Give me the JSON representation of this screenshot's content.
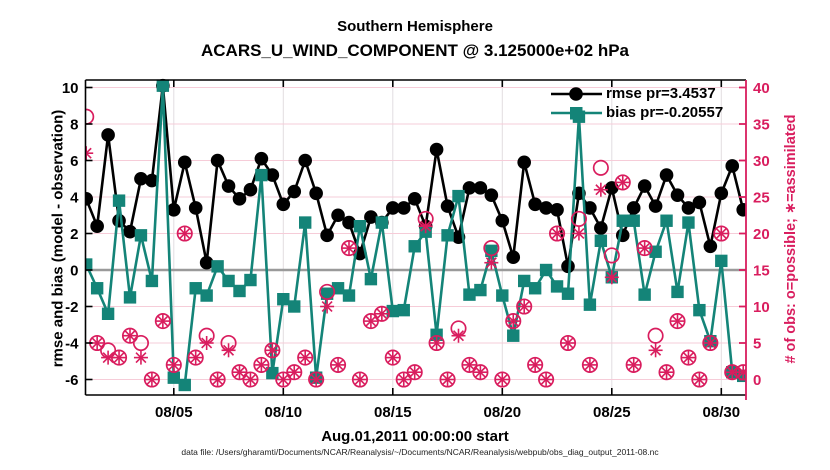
{
  "title": {
    "line1": "Southern Hemisphere",
    "line2": "ACARS_U_WIND_COMPONENT @ 3.125000e+02 hPa"
  },
  "axes": {
    "left_label": "rmse and bias (model - observation)",
    "right_label": "# of obs: o=possible; ∗=assimilated",
    "x_label": "Aug.01,2011 00:00:00 start",
    "left_ticks": [
      10,
      8,
      6,
      4,
      2,
      0,
      -2,
      -4,
      -6
    ],
    "right_ticks": [
      40,
      35,
      30,
      25,
      20,
      15,
      10,
      5,
      0
    ],
    "x_ticks": [
      {
        "label": "08/05",
        "day": 4
      },
      {
        "label": "08/10",
        "day": 9
      },
      {
        "label": "08/15",
        "day": 14
      },
      {
        "label": "08/20",
        "day": 19
      },
      {
        "label": "08/25",
        "day": 24
      },
      {
        "label": "08/30",
        "day": 29
      }
    ]
  },
  "legend": {
    "rmse_label": "rmse pr=3.4537",
    "bias_label": "bias pr=-0.20557"
  },
  "caption": "data file: /Users/gharamti/Documents/NCAR/Reanalysis/~/Documents/NCAR/Reanalysis/webpub/obs_diag_output_2011-08.nc",
  "colors": {
    "rmse": "#000000",
    "bias": "#148478",
    "obs": "#d91d5e",
    "grid_pink": "#f6ccd8",
    "grid_gray": "#e2dde0",
    "zero_line": "#9a9a9a",
    "spine": "#000000",
    "right_spine": "#d91d5e"
  },
  "chart_data": {
    "type": "line",
    "title": "Southern Hemisphere — ACARS_U_WIND_COMPONENT @ 3.125000e+02 hPa",
    "xlabel": "Aug.01,2011 00:00:00 start",
    "ylabel_left": "rmse and bias (model - observation)",
    "ylabel_right": "# of obs: o=possible; *=assimilated",
    "x_start": "2011-08-01 00:00",
    "x_step_hours": 12,
    "ylim_left": [
      -6.85,
      10.41
    ],
    "ylim_right": [
      -2.1,
      41.0
    ],
    "grid": true,
    "legend_position": "top-right",
    "x_days": [
      0,
      0.5,
      1,
      1.5,
      2,
      2.5,
      3,
      3.5,
      4,
      4.5,
      5,
      5.5,
      6,
      6.5,
      7,
      7.5,
      8,
      8.5,
      9,
      9.5,
      10,
      10.5,
      11,
      11.5,
      12,
      12.5,
      13,
      13.5,
      14,
      14.5,
      15,
      15.5,
      16,
      16.5,
      17,
      17.5,
      18,
      18.5,
      19,
      19.5,
      20,
      20.5,
      21,
      21.5,
      22,
      22.5,
      23,
      23.5,
      24,
      24.5,
      25,
      25.5,
      26,
      26.5,
      27,
      27.5,
      28,
      28.5,
      29,
      29.5,
      30
    ],
    "series": [
      {
        "name": "rmse",
        "pr": 3.4537,
        "axis": "left",
        "marker": "filled-circle",
        "color": "#000000",
        "values": [
          3.9,
          2.4,
          7.4,
          2.7,
          2.1,
          5.0,
          4.9,
          10.1,
          3.3,
          5.9,
          3.4,
          0.4,
          6.0,
          4.6,
          3.9,
          4.4,
          6.1,
          5.2,
          3.6,
          4.3,
          6.0,
          4.2,
          1.9,
          3.0,
          2.6,
          0.9,
          2.9,
          2.6,
          3.4,
          3.4,
          3.9,
          2.4,
          6.6,
          3.5,
          1.8,
          4.5,
          4.5,
          4.1,
          2.7,
          0.7,
          5.9,
          3.6,
          3.4,
          3.3,
          0.2,
          4.2,
          3.4,
          2.3,
          4.5,
          1.9,
          3.4,
          4.6,
          3.5,
          5.2,
          4.1,
          3.4,
          3.7,
          1.3,
          4.2,
          5.7,
          3.3
        ]
      },
      {
        "name": "bias",
        "pr": -0.20557,
        "axis": "left",
        "marker": "filled-square",
        "color": "#148478",
        "values": [
          0.3,
          -1.0,
          -2.4,
          3.8,
          -1.5,
          1.9,
          -0.6,
          10.1,
          -5.9,
          -6.3,
          -1.0,
          -1.4,
          0.2,
          -0.6,
          -1.15,
          -0.55,
          5.2,
          -5.65,
          -1.6,
          -2.0,
          2.6,
          -5.9,
          -1.3,
          -1.0,
          -1.4,
          2.4,
          -0.5,
          2.6,
          -2.25,
          -2.2,
          1.3,
          2.1,
          -3.55,
          1.9,
          4.05,
          -1.35,
          -1.1,
          1.05,
          -1.4,
          -3.6,
          -0.6,
          -1.0,
          0.0,
          -0.9,
          -1.3,
          8.4,
          -1.9,
          1.6,
          -0.4,
          2.7,
          2.7,
          -1.35,
          1.0,
          2.7,
          -1.2,
          2.6,
          -2.2,
          -3.9,
          0.5,
          -5.6,
          -5.8
        ]
      },
      {
        "name": "obs_possible",
        "axis": "right",
        "marker": "open-circle",
        "color": "#d91d5e",
        "values": [
          36,
          5,
          4,
          3,
          6,
          5,
          0,
          8,
          2,
          20,
          3,
          6,
          0,
          5,
          1,
          0,
          2,
          4,
          0,
          1,
          3,
          0,
          12,
          2,
          18,
          0,
          8,
          9,
          3,
          0,
          1,
          22,
          5,
          0,
          7,
          2,
          1,
          18,
          0,
          8,
          10,
          2,
          0,
          20,
          5,
          22,
          2,
          29,
          17,
          27,
          2,
          18,
          6,
          1,
          8,
          3,
          0,
          5,
          20,
          1,
          1
        ]
      },
      {
        "name": "obs_assimilated",
        "axis": "right",
        "marker": "asterisk",
        "color": "#d91d5e",
        "values": [
          31,
          5,
          3,
          3,
          6,
          3,
          0,
          8,
          2,
          20,
          3,
          5,
          0,
          4,
          1,
          0,
          2,
          4,
          0,
          1,
          3,
          0,
          10,
          2,
          18,
          0,
          8,
          9,
          3,
          0,
          1,
          21,
          5,
          0,
          6,
          2,
          1,
          16,
          0,
          8,
          10,
          2,
          0,
          20,
          5,
          20,
          2,
          26,
          14,
          27,
          2,
          18,
          4,
          1,
          8,
          3,
          0,
          5,
          20,
          1,
          1
        ]
      }
    ]
  }
}
